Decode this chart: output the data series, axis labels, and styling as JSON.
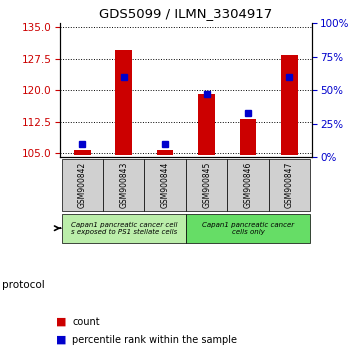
{
  "title": "GDS5099 / ILMN_3304917",
  "samples": [
    "GSM900842",
    "GSM900843",
    "GSM900844",
    "GSM900845",
    "GSM900846",
    "GSM900847"
  ],
  "count_values": [
    105.7,
    129.5,
    105.8,
    119.0,
    113.2,
    128.5
  ],
  "percentile_right": [
    10,
    60,
    10,
    47,
    33,
    60
  ],
  "ylim_left": [
    104,
    136
  ],
  "ylim_right": [
    0,
    100
  ],
  "yticks_left": [
    105,
    112.5,
    120,
    127.5,
    135
  ],
  "yticks_right": [
    0,
    25,
    50,
    75,
    100
  ],
  "bar_color": "#cc0000",
  "dot_color": "#0000cc",
  "bar_base": 104.5,
  "group_colors": [
    "#bbeeaa",
    "#66dd66"
  ],
  "group_labels": [
    "Capan1 pancreatic cancer cell\ns exposed to PS1 stellate cells",
    "Capan1 pancreatic cancer\ncells only"
  ],
  "group_ranges": [
    [
      0,
      2
    ],
    [
      3,
      5
    ]
  ],
  "legend_items": [
    {
      "color": "#cc0000",
      "label": "count"
    },
    {
      "color": "#0000cc",
      "label": "percentile rank within the sample"
    }
  ],
  "protocol_label": "protocol",
  "bg_color": "#ffffff",
  "plot_bg": "#ffffff",
  "tick_label_color_left": "#cc0000",
  "tick_label_color_right": "#0000cc"
}
